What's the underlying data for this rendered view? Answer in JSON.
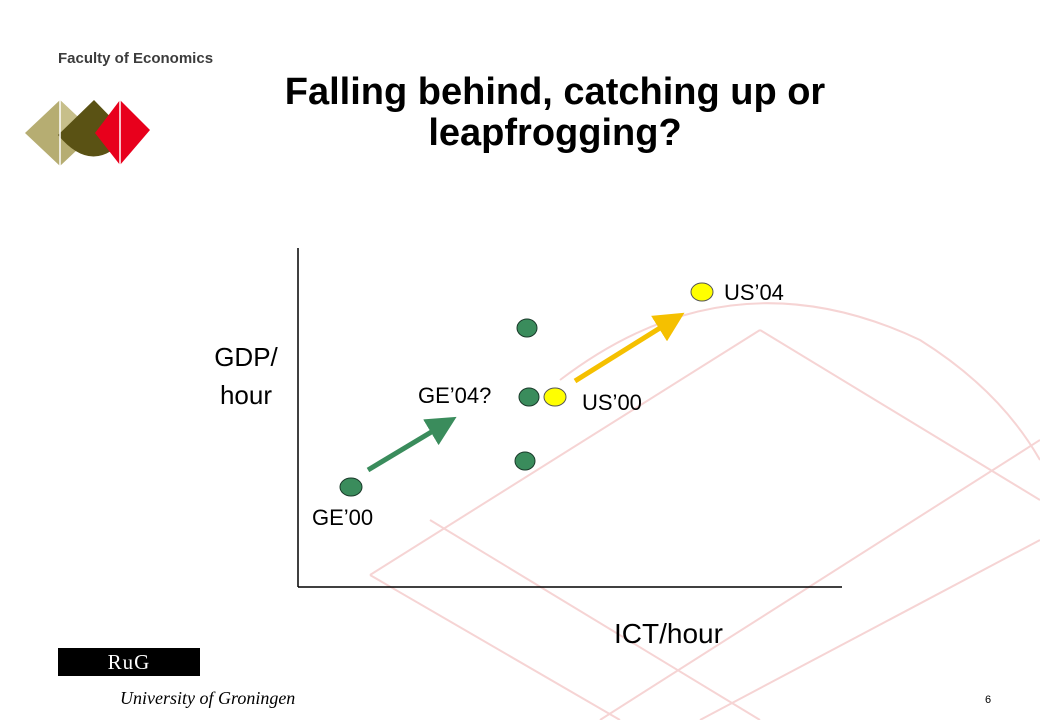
{
  "header": {
    "faculty": "Faculty of Economics",
    "title": "Falling behind, catching up or leapfrogging?"
  },
  "diagram": {
    "y_axis_label_line1": "GDP/",
    "y_axis_label_line2": "hour",
    "x_axis_label": "ICT/hour",
    "points": {
      "ge00": "GE’00",
      "ge04": "GE’04?",
      "us00": "US’00",
      "us04": "US’04"
    },
    "colors": {
      "germany": "#3a8c5c",
      "us": "#ffff00",
      "germany_arrow": "#3a8c5c",
      "us_arrow": "#f5c000"
    }
  },
  "footer": {
    "rug": "RuG",
    "university": "University of Groningen",
    "page_number": "6"
  },
  "logo_colors": [
    "#b6ad72",
    "#5a5214",
    "#e8001c"
  ]
}
